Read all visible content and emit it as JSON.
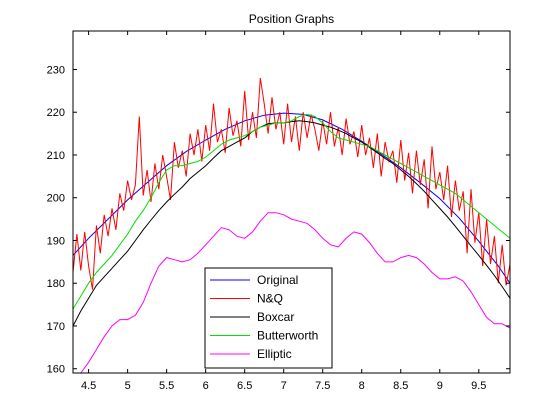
{
  "chart_data": {
    "type": "line",
    "title": "Position Graphs",
    "xlabel": "",
    "ylabel": "",
    "xlim": [
      4.3,
      9.9
    ],
    "ylim": [
      159,
      239
    ],
    "xticks": [
      4.5,
      5,
      5.5,
      6,
      6.5,
      7,
      7.5,
      8,
      8.5,
      9,
      9.5
    ],
    "xtick_labels": [
      "4.5",
      "5",
      "5.5",
      "6",
      "6.5",
      "7",
      "7.5",
      "8",
      "8.5",
      "9",
      "9.5"
    ],
    "yticks": [
      160,
      170,
      180,
      190,
      200,
      210,
      220,
      230
    ],
    "ytick_labels": [
      "160",
      "170",
      "180",
      "190",
      "200",
      "210",
      "220",
      "230"
    ],
    "grid": false,
    "legend": {
      "placement": "bottom-center"
    },
    "series": [
      {
        "name": "Original",
        "color": "#0000ff",
        "x": [
          4.3,
          4.5,
          4.75,
          5.0,
          5.25,
          5.5,
          5.75,
          6.0,
          6.25,
          6.5,
          6.75,
          7.0,
          7.25,
          7.5,
          7.75,
          8.0,
          8.25,
          8.5,
          8.75,
          9.0,
          9.25,
          9.5,
          9.75,
          9.9
        ],
        "y": [
          186.5,
          190.5,
          195.0,
          199.5,
          203.5,
          207.5,
          210.8,
          213.5,
          216.0,
          218.0,
          219.3,
          219.8,
          219.5,
          218.2,
          216.0,
          213.2,
          210.2,
          207.0,
          203.5,
          199.8,
          195.2,
          189.8,
          184.0,
          180.0
        ]
      },
      {
        "name": "N&Q",
        "color": "#ff0000",
        "x": [
          4.3,
          4.35,
          4.4,
          4.45,
          4.5,
          4.55,
          4.6,
          4.65,
          4.7,
          4.75,
          4.8,
          4.85,
          4.9,
          4.95,
          5.0,
          5.05,
          5.1,
          5.15,
          5.2,
          5.25,
          5.3,
          5.35,
          5.4,
          5.45,
          5.5,
          5.55,
          5.6,
          5.65,
          5.7,
          5.75,
          5.8,
          5.85,
          5.9,
          5.95,
          6.0,
          6.05,
          6.1,
          6.15,
          6.2,
          6.25,
          6.3,
          6.35,
          6.4,
          6.45,
          6.5,
          6.55,
          6.6,
          6.65,
          6.7,
          6.75,
          6.8,
          6.85,
          6.9,
          6.95,
          7.0,
          7.05,
          7.1,
          7.15,
          7.2,
          7.25,
          7.3,
          7.35,
          7.4,
          7.45,
          7.5,
          7.55,
          7.6,
          7.65,
          7.7,
          7.75,
          7.8,
          7.85,
          7.9,
          7.95,
          8.0,
          8.05,
          8.1,
          8.15,
          8.2,
          8.25,
          8.3,
          8.35,
          8.4,
          8.45,
          8.5,
          8.55,
          8.6,
          8.65,
          8.7,
          8.75,
          8.8,
          8.85,
          8.9,
          8.95,
          9.0,
          9.05,
          9.1,
          9.15,
          9.2,
          9.25,
          9.3,
          9.35,
          9.4,
          9.45,
          9.5,
          9.55,
          9.6,
          9.65,
          9.7,
          9.75,
          9.8,
          9.85,
          9.9
        ],
        "y": [
          182.5,
          191.5,
          183.0,
          192.0,
          184.0,
          178.5,
          193.5,
          187.0,
          196.0,
          191.0,
          197.5,
          192.5,
          201.0,
          197.0,
          204.0,
          199.5,
          203.0,
          219.0,
          200.5,
          206.5,
          199.0,
          208.0,
          202.0,
          210.0,
          205.0,
          199.5,
          213.0,
          207.0,
          211.0,
          205.0,
          215.0,
          210.0,
          216.0,
          208.5,
          217.0,
          211.0,
          222.0,
          213.0,
          216.0,
          210.5,
          221.0,
          214.5,
          218.0,
          212.0,
          225.0,
          213.5,
          220.0,
          214.0,
          228.0,
          222.0,
          215.0,
          223.5,
          216.0,
          220.0,
          212.5,
          222.0,
          213.0,
          219.0,
          211.0,
          220.0,
          214.0,
          219.5,
          216.0,
          211.0,
          218.0,
          212.5,
          220.0,
          212.0,
          216.5,
          210.0,
          218.5,
          212.5,
          215.5,
          209.5,
          217.0,
          210.0,
          214.0,
          207.0,
          215.0,
          205.0,
          213.0,
          208.5,
          211.0,
          203.5,
          213.5,
          204.0,
          210.5,
          201.0,
          211.0,
          203.0,
          209.0,
          197.5,
          212.0,
          202.0,
          206.0,
          199.5,
          207.5,
          195.5,
          204.0,
          197.0,
          201.5,
          187.0,
          202.0,
          189.5,
          196.5,
          184.0,
          195.0,
          184.5,
          191.0,
          180.0,
          189.0,
          179.5,
          184.5
        ]
      },
      {
        "name": "Boxcar",
        "color": "#000000",
        "x": [
          4.3,
          4.4,
          4.5,
          4.6,
          4.7,
          4.8,
          4.9,
          5.0,
          5.1,
          5.2,
          5.3,
          5.4,
          5.5,
          5.6,
          5.7,
          5.8,
          5.9,
          6.0,
          6.1,
          6.2,
          6.3,
          6.4,
          6.5,
          6.6,
          6.7,
          6.8,
          6.9,
          7.0,
          7.1,
          7.2,
          7.3,
          7.4,
          7.5,
          7.6,
          7.7,
          7.8,
          7.9,
          8.0,
          8.1,
          8.2,
          8.3,
          8.4,
          8.5,
          8.6,
          8.7,
          8.8,
          8.9,
          9.0,
          9.1,
          9.2,
          9.3,
          9.4,
          9.5,
          9.6,
          9.7,
          9.8,
          9.9
        ],
        "y": [
          170.0,
          173.5,
          176.5,
          179.5,
          181.5,
          183.5,
          185.5,
          187.5,
          190.0,
          192.5,
          194.8,
          197.0,
          199.0,
          200.8,
          202.5,
          204.5,
          206.0,
          207.5,
          209.3,
          211.0,
          212.0,
          213.0,
          214.0,
          215.5,
          216.5,
          217.3,
          217.5,
          217.5,
          217.8,
          218.0,
          217.8,
          217.5,
          217.0,
          216.5,
          215.8,
          215.0,
          214.0,
          213.0,
          211.8,
          210.5,
          209.2,
          208.0,
          206.5,
          205.0,
          203.3,
          201.5,
          199.5,
          197.5,
          195.5,
          193.3,
          191.0,
          188.7,
          186.5,
          184.2,
          181.8,
          179.2,
          176.5
        ]
      },
      {
        "name": "Butterworth",
        "color": "#00e000",
        "x": [
          4.3,
          4.4,
          4.5,
          4.6,
          4.7,
          4.8,
          4.9,
          5.0,
          5.1,
          5.2,
          5.3,
          5.4,
          5.5,
          5.6,
          5.7,
          5.8,
          5.9,
          6.0,
          6.1,
          6.2,
          6.3,
          6.4,
          6.5,
          6.6,
          6.7,
          6.8,
          6.9,
          7.0,
          7.1,
          7.2,
          7.3,
          7.4,
          7.5,
          7.6,
          7.7,
          7.8,
          7.9,
          8.0,
          8.1,
          8.2,
          8.3,
          8.4,
          8.5,
          8.6,
          8.7,
          8.8,
          8.9,
          9.0,
          9.1,
          9.2,
          9.3,
          9.4,
          9.5,
          9.6,
          9.7,
          9.8,
          9.9
        ],
        "y": [
          174.0,
          177.0,
          180.0,
          182.5,
          184.5,
          186.5,
          189.0,
          191.5,
          194.5,
          197.0,
          200.0,
          203.5,
          206.5,
          207.5,
          207.5,
          208.0,
          208.5,
          209.5,
          211.0,
          212.5,
          213.5,
          214.0,
          214.5,
          215.5,
          216.5,
          217.0,
          217.5,
          217.5,
          218.0,
          219.0,
          219.5,
          219.0,
          217.5,
          215.5,
          214.0,
          213.5,
          213.0,
          212.5,
          212.0,
          211.0,
          210.0,
          209.0,
          208.0,
          207.0,
          206.0,
          205.0,
          204.0,
          203.0,
          202.0,
          201.0,
          199.5,
          198.0,
          196.5,
          195.0,
          193.5,
          192.0,
          190.5
        ]
      },
      {
        "name": "Elliptic",
        "color": "#ff00ff",
        "x": [
          4.3,
          4.4,
          4.5,
          4.6,
          4.7,
          4.8,
          4.9,
          5.0,
          5.1,
          5.2,
          5.3,
          5.4,
          5.5,
          5.6,
          5.7,
          5.8,
          5.9,
          6.0,
          6.1,
          6.2,
          6.3,
          6.4,
          6.5,
          6.6,
          6.7,
          6.8,
          6.9,
          7.0,
          7.1,
          7.2,
          7.3,
          7.4,
          7.5,
          7.6,
          7.7,
          7.8,
          7.9,
          8.0,
          8.1,
          8.2,
          8.3,
          8.4,
          8.5,
          8.6,
          8.7,
          8.8,
          8.9,
          9.0,
          9.1,
          9.2,
          9.3,
          9.4,
          9.5,
          9.6,
          9.7,
          9.8,
          9.9
        ],
        "y": [
          157.0,
          159.0,
          161.5,
          164.5,
          167.5,
          170.0,
          171.5,
          171.5,
          172.5,
          175.5,
          180.0,
          184.0,
          186.0,
          185.5,
          185.0,
          185.5,
          187.0,
          189.0,
          191.0,
          193.0,
          192.5,
          191.0,
          190.5,
          192.0,
          194.5,
          196.5,
          196.5,
          196.0,
          195.0,
          194.5,
          194.0,
          192.5,
          190.5,
          189.0,
          188.5,
          190.5,
          192.0,
          191.5,
          189.5,
          187.0,
          185.0,
          185.0,
          186.0,
          186.5,
          186.0,
          184.5,
          182.5,
          181.0,
          181.0,
          181.5,
          180.5,
          178.0,
          175.0,
          172.0,
          170.5,
          170.5,
          169.5
        ]
      }
    ]
  }
}
